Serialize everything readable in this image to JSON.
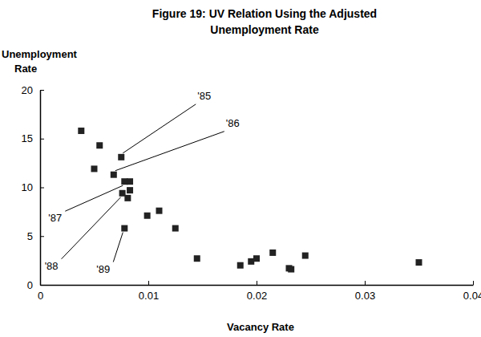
{
  "chart_data": {
    "type": "scatter",
    "title": [
      "Figure 19: UV Relation Using the Adjusted",
      "Unemployment Rate"
    ],
    "x_label": "Vacancy Rate",
    "y_label": "Unemployment Rate",
    "marker": "square",
    "color": "#222222",
    "x": [
      0.0038,
      0.0055,
      0.005,
      0.0075,
      0.0068,
      0.0078,
      0.0083,
      0.0076,
      0.0083,
      0.0081,
      0.0078,
      0.0099,
      0.011,
      0.0125,
      0.0145,
      0.0185,
      0.0195,
      0.02,
      0.0215,
      0.023,
      0.0232,
      0.0245,
      0.035
    ],
    "values": [
      15.8,
      14.3,
      11.9,
      13.1,
      11.3,
      10.6,
      10.6,
      9.4,
      9.7,
      8.9,
      5.8,
      7.1,
      7.6,
      5.8,
      2.7,
      2.0,
      2.4,
      2.7,
      3.3,
      1.7,
      1.6,
      3.0,
      2.3
    ],
    "xlim": [
      0,
      0.04
    ],
    "xticks": [
      0,
      0.01,
      0.02,
      0.03,
      0.04
    ],
    "ylim": [
      0,
      20
    ],
    "yticks": [
      0,
      5,
      10,
      15,
      20
    ],
    "annotations": [
      {
        "text": "'85",
        "x": 0.0075,
        "y": 13.1
      },
      {
        "text": "'86",
        "x": 0.0068,
        "y": 11.3
      },
      {
        "text": "'87",
        "x": 0.0078,
        "y": 10.6
      },
      {
        "text": "'88",
        "x": 0.0076,
        "y": 9.4
      },
      {
        "text": "'89",
        "x": 0.0078,
        "y": 5.8
      }
    ]
  }
}
